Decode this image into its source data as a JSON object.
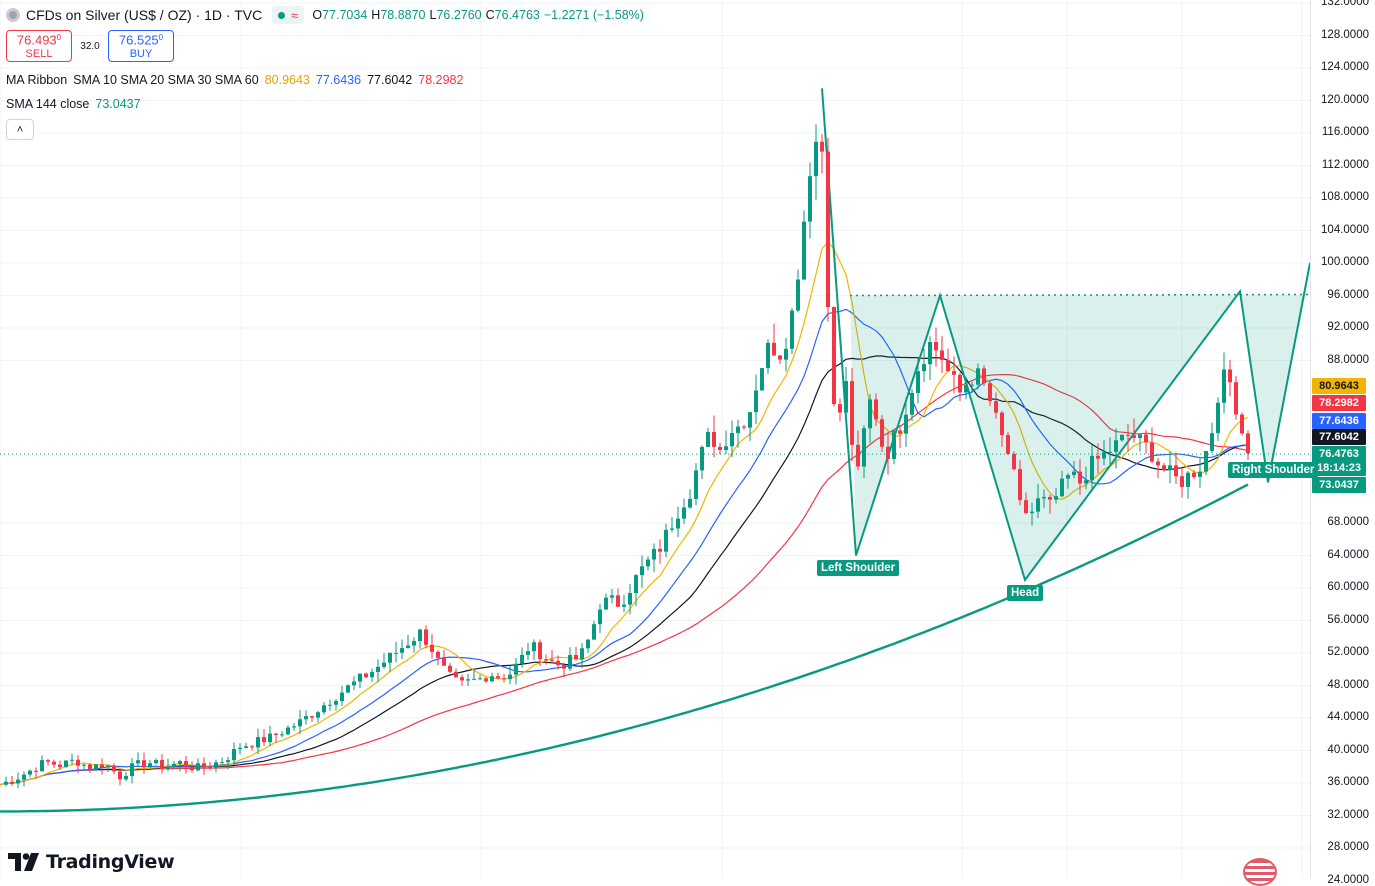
{
  "header": {
    "title": "CFDs on Silver (US$ / OZ) · 1D · TVC",
    "ohlc": [
      {
        "k": "O",
        "v": "77.7034"
      },
      {
        "k": "H",
        "v": "78.8870"
      },
      {
        "k": "L",
        "v": "76.2760"
      },
      {
        "k": "C",
        "v": "76.4763"
      }
    ],
    "change": "−1.2271 (−1.58%)"
  },
  "trade": {
    "sell_price": "76.493",
    "sell_sup": "0",
    "sell_label": "SELL",
    "spread": "32.0",
    "buy_price": "76.525",
    "buy_sup": "0",
    "buy_label": "BUY"
  },
  "indicators": {
    "ribbon_label": "MA Ribbon",
    "ribbon_params": "SMA 10 SMA 20 SMA 30 SMA 60",
    "ribbon_values": [
      {
        "value": "80.9643",
        "color": "#e2a400"
      },
      {
        "value": "77.6436",
        "color": "#2962ff"
      },
      {
        "value": "77.6042",
        "color": "#131722"
      },
      {
        "value": "78.2982",
        "color": "#f23645"
      }
    ],
    "sma_label": "SMA 144 close",
    "sma_value": "73.0437",
    "sma_color": "#089981"
  },
  "colors": {
    "up": "#089981",
    "down": "#f23645",
    "sma10": "#f2b600",
    "sma20": "#2962ff",
    "sma30": "#131722",
    "sma60": "#f23645",
    "sma144": "#089981",
    "pattern": "#089981",
    "pattern_fill": "rgba(8,153,129,0.15)"
  },
  "annotations": {
    "left_shoulder": "Left Shoulder",
    "head": "Head",
    "right_shoulder": "Right Shoulder"
  },
  "price_tags": [
    {
      "text": "80.9643",
      "bg": "#f2b600",
      "fg": "#131722"
    },
    {
      "text": "78.2982",
      "bg": "#f23645",
      "fg": "#ffffff"
    },
    {
      "text": "77.6436",
      "bg": "#2962ff",
      "fg": "#ffffff"
    },
    {
      "text": "77.6042",
      "bg": "#131722",
      "fg": "#ffffff"
    },
    {
      "text": "76.4763",
      "bg": "#089981",
      "fg": "#ffffff"
    },
    {
      "text": "18:14:23",
      "bg": "#089981",
      "fg": "#ffffff"
    },
    {
      "text": "73.0437",
      "bg": "#089981",
      "fg": "#ffffff"
    }
  ],
  "branding": {
    "logo_text": "TradingView"
  },
  "chart_data": {
    "type": "candlestick",
    "y_axis_ticks": [
      "132.0000",
      "128.0000",
      "124.0000",
      "120.0000",
      "116.0000",
      "112.0000",
      "108.0000",
      "104.0000",
      "100.0000",
      "96.0000",
      "92.0000",
      "88.0000",
      "68.0000",
      "64.0000",
      "60.0000",
      "56.0000",
      "52.0000",
      "48.0000",
      "44.0000",
      "40.0000",
      "36.0000",
      "32.0000",
      "28.0000",
      "24.0000"
    ],
    "ylim": [
      24,
      132
    ],
    "close_anchor_points": [
      [
        0,
        35.8
      ],
      [
        15,
        36.5
      ],
      [
        30,
        37.5
      ],
      [
        45,
        38.6
      ],
      [
        60,
        38.2
      ],
      [
        75,
        38.8
      ],
      [
        90,
        37.9
      ],
      [
        105,
        38.4
      ],
      [
        120,
        36.8
      ],
      [
        135,
        38.2
      ],
      [
        150,
        38.5
      ],
      [
        165,
        38.0
      ],
      [
        180,
        38.5
      ],
      [
        195,
        37.8
      ],
      [
        210,
        38.2
      ],
      [
        225,
        38.9
      ],
      [
        240,
        40.5
      ],
      [
        255,
        41.0
      ],
      [
        270,
        41.6
      ],
      [
        285,
        42.5
      ],
      [
        300,
        43.5
      ],
      [
        315,
        44.8
      ],
      [
        330,
        46.2
      ],
      [
        345,
        47.5
      ],
      [
        360,
        48.8
      ],
      [
        375,
        50.0
      ],
      [
        390,
        51.5
      ],
      [
        405,
        53.0
      ],
      [
        420,
        54.5
      ],
      [
        430,
        53.0
      ],
      [
        440,
        50.5
      ],
      [
        450,
        49.0
      ],
      [
        460,
        48.0
      ],
      [
        470,
        48.5
      ],
      [
        480,
        48.8
      ],
      [
        490,
        49.5
      ],
      [
        500,
        49.0
      ],
      [
        510,
        49.5
      ],
      [
        520,
        51.0
      ],
      [
        530,
        53.0
      ],
      [
        540,
        52.0
      ],
      [
        550,
        51.0
      ],
      [
        560,
        50.5
      ],
      [
        570,
        51.0
      ],
      [
        580,
        51.5
      ],
      [
        590,
        54.0
      ],
      [
        600,
        58.0
      ],
      [
        610,
        58.5
      ],
      [
        620,
        58.0
      ],
      [
        630,
        60.0
      ],
      [
        640,
        62.0
      ],
      [
        650,
        63.5
      ],
      [
        660,
        65.0
      ],
      [
        670,
        67.5
      ],
      [
        680,
        70.0
      ],
      [
        690,
        72.0
      ],
      [
        700,
        76.0
      ],
      [
        710,
        79.0
      ],
      [
        720,
        77.0
      ],
      [
        730,
        79.5
      ],
      [
        740,
        80.0
      ],
      [
        750,
        82.0
      ],
      [
        760,
        87.0
      ],
      [
        770,
        90.0
      ],
      [
        780,
        89.0
      ],
      [
        790,
        92.0
      ],
      [
        800,
        101.0
      ],
      [
        810,
        112.0
      ],
      [
        820,
        117.0
      ],
      [
        826,
        108.0
      ],
      [
        830,
        84.0
      ],
      [
        838,
        80.0
      ],
      [
        845,
        86.0
      ],
      [
        852,
        78.0
      ],
      [
        858,
        74.0
      ],
      [
        865,
        80.0
      ],
      [
        872,
        84.0
      ],
      [
        878,
        80.0
      ],
      [
        885,
        76.0
      ],
      [
        892,
        78.0
      ],
      [
        900,
        80.0
      ],
      [
        910,
        84.0
      ],
      [
        920,
        88.0
      ],
      [
        930,
        90.0
      ],
      [
        940,
        89.0
      ],
      [
        950,
        86.0
      ],
      [
        960,
        84.0
      ],
      [
        970,
        86.0
      ],
      [
        980,
        86.0
      ],
      [
        990,
        83.0
      ],
      [
        1000,
        79.0
      ],
      [
        1010,
        76.0
      ],
      [
        1020,
        70.0
      ],
      [
        1030,
        69.0
      ],
      [
        1040,
        71.0
      ],
      [
        1050,
        70.0
      ],
      [
        1060,
        72.0
      ],
      [
        1070,
        74.0
      ],
      [
        1080,
        73.0
      ],
      [
        1090,
        75.0
      ],
      [
        1100,
        76.0
      ],
      [
        1110,
        77.0
      ],
      [
        1120,
        78.0
      ],
      [
        1130,
        79.0
      ],
      [
        1140,
        78.0
      ],
      [
        1150,
        77.0
      ],
      [
        1160,
        75.0
      ],
      [
        1170,
        74.0
      ],
      [
        1180,
        73.0
      ],
      [
        1190,
        74.0
      ],
      [
        1200,
        75.0
      ],
      [
        1210,
        78.0
      ],
      [
        1218,
        84.0
      ],
      [
        1225,
        86.0
      ],
      [
        1232,
        85.0
      ],
      [
        1240,
        80.0
      ],
      [
        1247,
        77.5
      ],
      [
        1252,
        76.5
      ]
    ],
    "pattern_points": [
      {
        "x": 822,
        "y": 121.5
      },
      {
        "x": 856,
        "y": 64.0
      },
      {
        "x": 940,
        "y": 96.0
      },
      {
        "x": 1025,
        "y": 61.0
      },
      {
        "x": 1240,
        "y": 96.5
      },
      {
        "x": 1268,
        "y": 73.0
      },
      {
        "x": 1310,
        "y": 100.0
      }
    ],
    "neckline": {
      "x1": 850,
      "x2": 1310,
      "y": 96.0
    }
  }
}
